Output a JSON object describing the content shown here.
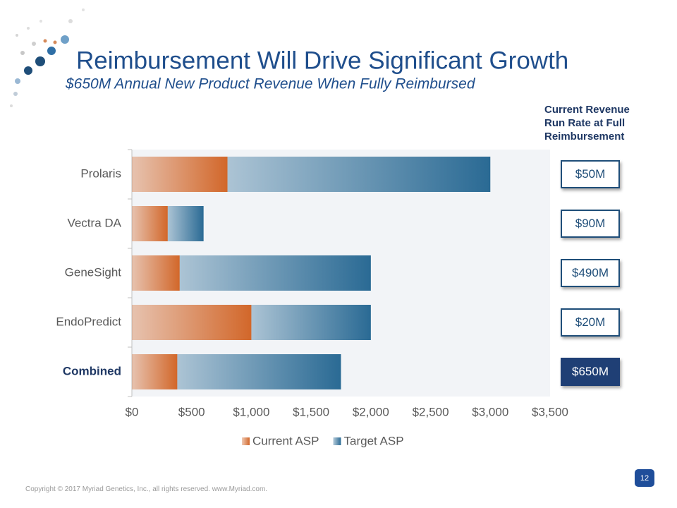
{
  "title": "Reimbursement Will Drive Significant Growth",
  "subtitle": "$650M Annual New Product Revenue When Fully Reimbursed",
  "chart_data": {
    "type": "stacked-barh",
    "categories": [
      "Prolaris",
      "Vectra DA",
      "GeneSight",
      "EndoPredict",
      "Combined"
    ],
    "series": [
      {
        "name": "Current ASP",
        "color": "#d2672a",
        "values": [
          800,
          300,
          400,
          1000,
          380
        ]
      },
      {
        "name": "Target ASP",
        "color": "#2a6a94",
        "values": [
          2200,
          300,
          1600,
          1000,
          1370
        ]
      }
    ],
    "xlim": [
      0,
      3500
    ],
    "xticks": [
      {
        "value": 0,
        "label": "$0"
      },
      {
        "value": 500,
        "label": "$500"
      },
      {
        "value": 1000,
        "label": "$1,000"
      },
      {
        "value": 1500,
        "label": "$1,500"
      },
      {
        "value": 2000,
        "label": "$2,000"
      },
      {
        "value": 2500,
        "label": "$2,500"
      },
      {
        "value": 3000,
        "label": "$3,000"
      },
      {
        "value": 3500,
        "label": "$3,500"
      }
    ],
    "legend": "bottom"
  },
  "side_panel": {
    "header": "Current Revenue Run Rate at Full Reimbursement",
    "values": [
      "$50M",
      "$90M",
      "$490M",
      "$20M",
      "$650M"
    ]
  },
  "footer": "Copyright © 2017 Myriad Genetics, Inc., all rights reserved.  www.Myriad.com.",
  "page_number": "12"
}
